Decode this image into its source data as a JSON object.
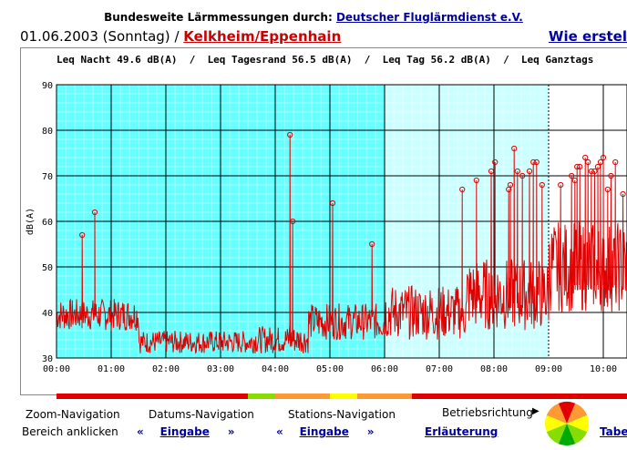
{
  "header": {
    "prefix": "Bundesweite Lärmmessungen durch:",
    "org_link": "Deutscher Fluglärmdienst e.V."
  },
  "subheader": {
    "date": "01.06.2003 (Sonntag)",
    "separator": "/",
    "location_link": "Kelkheim/Eppenhain",
    "howto_link": "Wie erstel"
  },
  "leq_line": "Leq Nacht 49.6 dB(A)  /  Leq Tagesrand 56.5 dB(A)  /  Leq Tag 56.2 dB(A)  /  Leq Ganztags",
  "colors": {
    "night_bg": "#66ffff",
    "edge_bg": "#ccffff",
    "signal": "#e00000",
    "bar_red": "#e00000",
    "bar_green": "#88dd00",
    "bar_orange": "#ff9933",
    "bar_yellow": "#ffff00"
  },
  "chart_data": {
    "type": "line",
    "ylabel": "dB(A)",
    "ylim": [
      30,
      90
    ],
    "yticks": [
      "30",
      "40",
      "50",
      "60",
      "70",
      "80",
      "90"
    ],
    "xticks": [
      "00:00",
      "01:00",
      "02:00",
      "03:00",
      "04:00",
      "05:00",
      "06:00",
      "07:00",
      "08:00",
      "09:00",
      "10:00"
    ],
    "xlim_hours": [
      0,
      10.45
    ],
    "background_bands": [
      {
        "from": 0,
        "to": 6,
        "kind": "night"
      },
      {
        "from": 6,
        "to": 9,
        "kind": "edge"
      }
    ],
    "peaks": [
      {
        "t": 0.47,
        "db": 57
      },
      {
        "t": 0.7,
        "db": 62
      },
      {
        "t": 4.27,
        "db": 79
      },
      {
        "t": 4.32,
        "db": 60
      },
      {
        "t": 5.05,
        "db": 64
      },
      {
        "t": 5.77,
        "db": 55
      },
      {
        "t": 7.42,
        "db": 67
      },
      {
        "t": 7.68,
        "db": 69
      },
      {
        "t": 7.95,
        "db": 71
      },
      {
        "t": 8.02,
        "db": 73
      },
      {
        "t": 8.27,
        "db": 67
      },
      {
        "t": 8.3,
        "db": 68
      },
      {
        "t": 8.37,
        "db": 76
      },
      {
        "t": 8.43,
        "db": 71
      },
      {
        "t": 8.52,
        "db": 70
      },
      {
        "t": 8.65,
        "db": 71
      },
      {
        "t": 8.72,
        "db": 73
      },
      {
        "t": 8.78,
        "db": 73
      },
      {
        "t": 8.88,
        "db": 68
      },
      {
        "t": 9.22,
        "db": 68
      },
      {
        "t": 9.42,
        "db": 70
      },
      {
        "t": 9.48,
        "db": 69
      },
      {
        "t": 9.52,
        "db": 72
      },
      {
        "t": 9.57,
        "db": 72
      },
      {
        "t": 9.67,
        "db": 74
      },
      {
        "t": 9.72,
        "db": 73
      },
      {
        "t": 9.78,
        "db": 71
      },
      {
        "t": 9.84,
        "db": 71
      },
      {
        "t": 9.9,
        "db": 72
      },
      {
        "t": 9.95,
        "db": 73
      },
      {
        "t": 10.0,
        "db": 74
      },
      {
        "t": 10.08,
        "db": 67
      },
      {
        "t": 10.14,
        "db": 70
      },
      {
        "t": 10.22,
        "db": 73
      },
      {
        "t": 10.36,
        "db": 66
      }
    ],
    "baseline": [
      {
        "from": 0,
        "to": 1.5,
        "min": 36,
        "max": 43
      },
      {
        "from": 1.5,
        "to": 3.6,
        "min": 31,
        "max": 36
      },
      {
        "from": 3.6,
        "to": 4.6,
        "min": 31,
        "max": 37
      },
      {
        "from": 4.6,
        "to": 6.0,
        "min": 34,
        "max": 42
      },
      {
        "from": 6.0,
        "to": 7.5,
        "min": 34,
        "max": 46
      },
      {
        "from": 7.5,
        "to": 9.0,
        "min": 36,
        "max": 52
      },
      {
        "from": 9.0,
        "to": 10.45,
        "min": 40,
        "max": 60
      }
    ]
  },
  "status_bar": [
    {
      "from": 0,
      "to": 3.5,
      "color": "#e00000"
    },
    {
      "from": 3.5,
      "to": 4.0,
      "color": "#88dd00"
    },
    {
      "from": 4.0,
      "to": 5.0,
      "color": "#ff9933"
    },
    {
      "from": 5.0,
      "to": 5.5,
      "color": "#ffff00"
    },
    {
      "from": 5.5,
      "to": 6.5,
      "color": "#ff9933"
    },
    {
      "from": 6.5,
      "to": 10.45,
      "color": "#e00000"
    }
  ],
  "nav": {
    "zoom_title": "Zoom-Navigation",
    "zoom_sub": "Bereich anklicken",
    "date_title": "Datums-Navigation",
    "date_link": "Eingabe",
    "station_title": "Stations-Navigation",
    "station_link": "Eingabe",
    "explain_link": "Erläuterung",
    "direction_title": "Betriebsrichtung",
    "table_link": "Tabe",
    "prev_arrows": "«",
    "next_arrows": "»"
  }
}
